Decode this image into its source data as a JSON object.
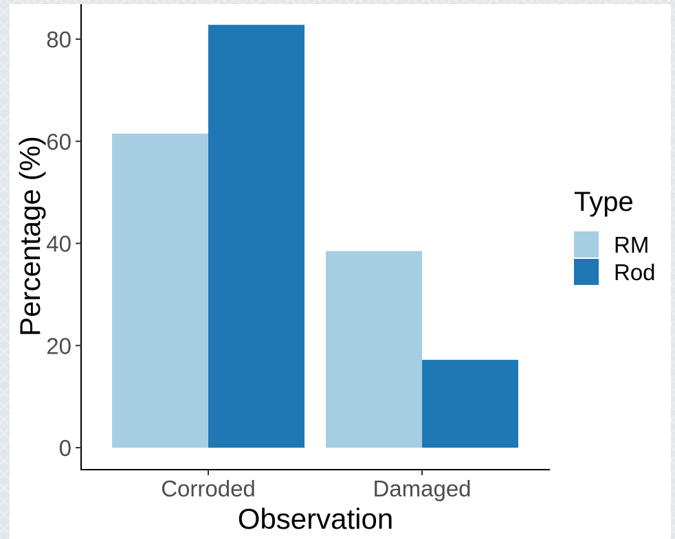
{
  "chart_data": {
    "type": "bar",
    "categories": [
      "Corroded",
      "Damaged"
    ],
    "series": [
      {
        "name": "RM",
        "values": [
          61.5,
          38.5
        ],
        "color": "#a6cee3"
      },
      {
        "name": "Rod",
        "values": [
          82.8,
          17.2
        ],
        "color": "#1f78b4"
      }
    ],
    "xlabel": "Observation",
    "ylabel": "Percentage (%)",
    "yticks": [
      0,
      20,
      40,
      60,
      80
    ],
    "ylim": [
      -4.2,
      87
    ],
    "legend": {
      "title": "Type",
      "position": "right"
    },
    "grid": false
  }
}
